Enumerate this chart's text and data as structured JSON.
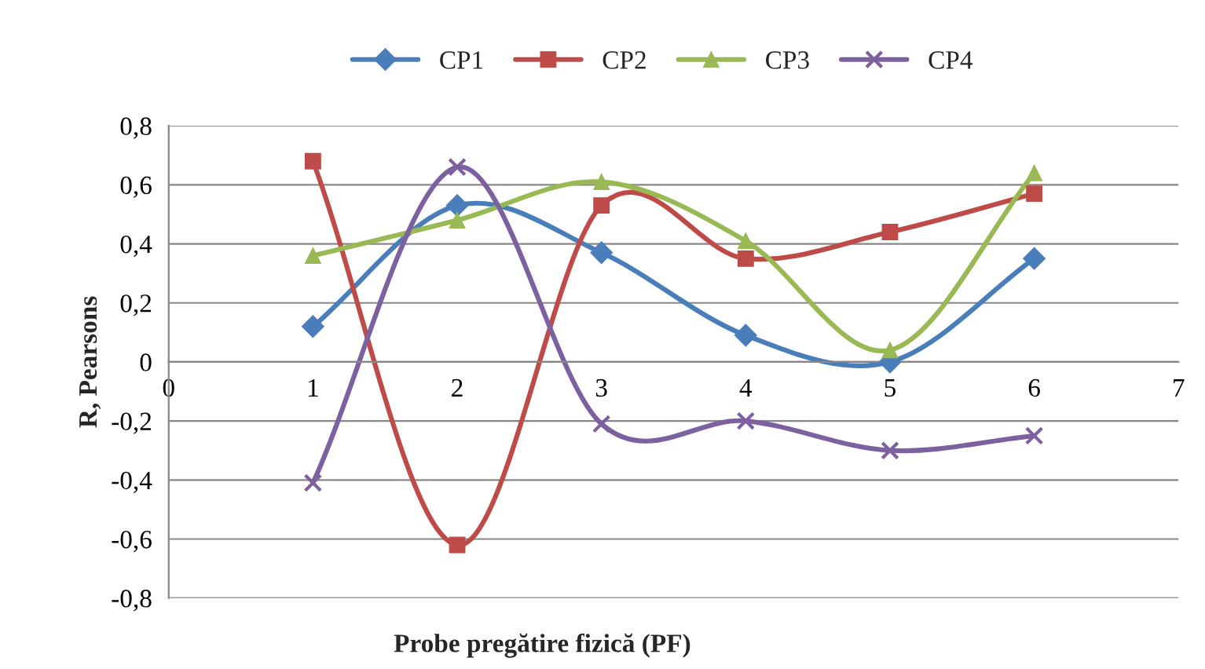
{
  "chart_data": {
    "type": "line",
    "xlabel": "Probe pregătire fizică (PF)",
    "ylabel": "R, Pearsons",
    "x": [
      1,
      2,
      3,
      4,
      5,
      6
    ],
    "series": [
      {
        "name": "CP1",
        "color": "#4a7ebb",
        "marker": "diamond",
        "values": [
          0.12,
          0.53,
          0.37,
          0.09,
          0.0,
          0.35
        ]
      },
      {
        "name": "CP2",
        "color": "#be4b48",
        "marker": "square",
        "values": [
          0.68,
          -0.62,
          0.53,
          0.35,
          0.44,
          0.57
        ]
      },
      {
        "name": "CP3",
        "color": "#98b954",
        "marker": "triangle",
        "values": [
          0.36,
          0.48,
          0.61,
          0.41,
          0.04,
          0.64
        ]
      },
      {
        "name": "CP4",
        "color": "#7d60a0",
        "marker": "cross",
        "values": [
          -0.41,
          0.66,
          -0.21,
          -0.2,
          -0.3,
          -0.25
        ]
      }
    ],
    "xlim": [
      0,
      7
    ],
    "xticks": [
      0,
      1,
      2,
      3,
      4,
      5,
      6,
      7
    ],
    "ylim": [
      -0.8,
      0.8
    ],
    "yticks": [
      {
        "value": -0.8,
        "label": "-0,8"
      },
      {
        "value": -0.6,
        "label": "-0,6"
      },
      {
        "value": -0.4,
        "label": "-0,4"
      },
      {
        "value": -0.2,
        "label": "-0,2"
      },
      {
        "value": 0,
        "label": "0"
      },
      {
        "value": 0.2,
        "label": "0,2"
      },
      {
        "value": 0.4,
        "label": "0,4"
      },
      {
        "value": 0.6,
        "label": "0,6"
      },
      {
        "value": 0.8,
        "label": "0,8"
      }
    ],
    "grid": "y",
    "legend": "top",
    "line_style": "solid"
  }
}
